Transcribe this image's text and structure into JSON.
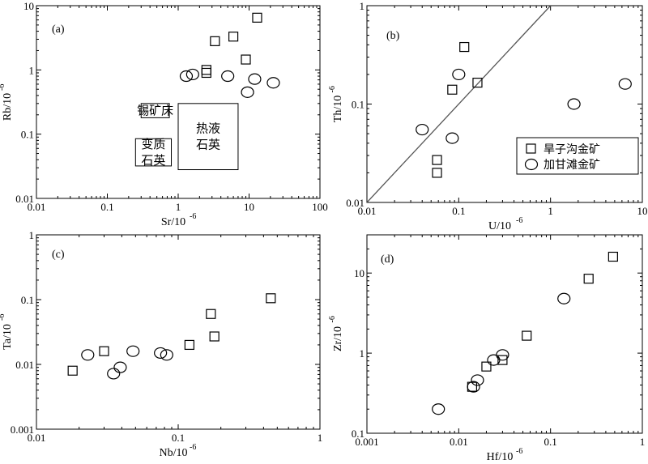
{
  "legend": {
    "square_label": "旱子沟金矿",
    "circle_label": "加甘滩金矿",
    "placement": "bottom-right of panel (b)"
  },
  "chart_data": [
    {
      "type": "scatter",
      "panel_label": "(a)",
      "xlabel": "Sr/10",
      "xlabel_sup": "-6",
      "ylabel": "Rb/10",
      "ylabel_sup": "-6",
      "xscale": "log",
      "yscale": "log",
      "xlim": [
        0.01,
        100
      ],
      "ylim": [
        0.01,
        10
      ],
      "xticks": [
        "0.01",
        "0.1",
        "1",
        "10",
        "100"
      ],
      "yticks": [
        "0.01",
        "0.1",
        "1",
        "10"
      ],
      "series": [
        {
          "marker": "square",
          "points": [
            [
              2.5,
              0.9
            ],
            [
              2.5,
              1.0
            ],
            [
              3.3,
              2.8
            ],
            [
              6.0,
              3.3
            ],
            [
              9.0,
              1.45
            ],
            [
              13.0,
              6.5
            ]
          ]
        },
        {
          "marker": "circle",
          "points": [
            [
              1.3,
              0.8
            ],
            [
              1.6,
              0.85
            ],
            [
              5.0,
              0.8
            ],
            [
              9.5,
              0.45
            ],
            [
              12.0,
              0.72
            ],
            [
              22.0,
              0.63
            ]
          ]
        }
      ],
      "fields": [
        {
          "label_lines": [
            "锡矿床"
          ],
          "x": [
            0.3,
            0.75
          ],
          "y": [
            0.18,
            0.3
          ]
        },
        {
          "label_lines": [
            "变质",
            "石英"
          ],
          "x": [
            0.25,
            0.8
          ],
          "y": [
            0.032,
            0.085
          ]
        },
        {
          "label_lines": [
            "热液",
            "石英"
          ],
          "x": [
            1.0,
            7.0
          ],
          "y": [
            0.028,
            0.3
          ]
        }
      ],
      "grid": false
    },
    {
      "type": "scatter",
      "panel_label": "(b)",
      "xlabel": "U/10",
      "xlabel_sup": "-6",
      "ylabel": "Th/10",
      "ylabel_sup": "-6",
      "xscale": "log",
      "yscale": "log",
      "xlim": [
        0.01,
        10
      ],
      "ylim": [
        0.01,
        1
      ],
      "xticks": [
        "0.01",
        "0.1",
        "1",
        "10"
      ],
      "yticks": [
        "0.01",
        "0.1",
        "1"
      ],
      "series": [
        {
          "marker": "square",
          "points": [
            [
              0.058,
              0.027
            ],
            [
              0.058,
              0.02
            ],
            [
              0.085,
              0.14
            ],
            [
              0.115,
              0.38
            ],
            [
              0.16,
              0.165
            ]
          ]
        },
        {
          "marker": "circle",
          "points": [
            [
              0.04,
              0.055
            ],
            [
              0.085,
              0.045
            ],
            [
              0.1,
              0.2
            ],
            [
              1.8,
              0.1
            ],
            [
              6.5,
              0.16
            ]
          ]
        }
      ],
      "reference_line": {
        "from": [
          0.01,
          0.01
        ],
        "to": [
          1.0,
          1.0
        ]
      },
      "grid": false
    },
    {
      "type": "scatter",
      "panel_label": "(c)",
      "xlabel": "Nb/10",
      "xlabel_sup": "-6",
      "ylabel": "Ta/10",
      "ylabel_sup": "-6",
      "xscale": "log",
      "yscale": "log",
      "xlim": [
        0.01,
        1
      ],
      "ylim": [
        0.001,
        1
      ],
      "xticks": [
        "0.01",
        "0.1",
        "1"
      ],
      "yticks": [
        "0.001",
        "0.01",
        "0.1",
        "1"
      ],
      "series": [
        {
          "marker": "square",
          "points": [
            [
              0.018,
              0.008
            ],
            [
              0.03,
              0.016
            ],
            [
              0.12,
              0.02
            ],
            [
              0.17,
              0.06
            ],
            [
              0.18,
              0.027
            ],
            [
              0.45,
              0.105
            ]
          ]
        },
        {
          "marker": "circle",
          "points": [
            [
              0.023,
              0.014
            ],
            [
              0.035,
              0.0072
            ],
            [
              0.039,
              0.009
            ],
            [
              0.048,
              0.016
            ],
            [
              0.075,
              0.015
            ],
            [
              0.083,
              0.014
            ]
          ]
        }
      ],
      "grid": false
    },
    {
      "type": "scatter",
      "panel_label": "(d)",
      "xlabel": "Hf/10",
      "xlabel_sup": "-6",
      "ylabel": "Zr/10",
      "ylabel_sup": "-6",
      "xscale": "log",
      "yscale": "log",
      "xlim": [
        0.001,
        1
      ],
      "ylim": [
        0.1,
        30
      ],
      "xticks": [
        "0.001",
        "0.01",
        "0.1",
        "1"
      ],
      "yticks": [
        "0.1",
        "1",
        "10"
      ],
      "series": [
        {
          "marker": "square",
          "points": [
            [
              0.014,
              0.38
            ],
            [
              0.02,
              0.68
            ],
            [
              0.03,
              0.82
            ],
            [
              0.055,
              1.65
            ],
            [
              0.26,
              8.5
            ],
            [
              0.48,
              16.0
            ]
          ]
        },
        {
          "marker": "circle",
          "points": [
            [
              0.006,
              0.2
            ],
            [
              0.0145,
              0.38
            ],
            [
              0.016,
              0.46
            ],
            [
              0.024,
              0.82
            ],
            [
              0.03,
              0.95
            ],
            [
              0.14,
              4.8
            ]
          ]
        }
      ],
      "grid": false
    }
  ]
}
